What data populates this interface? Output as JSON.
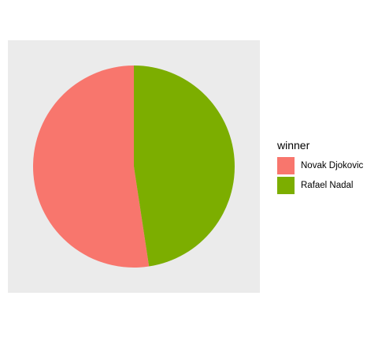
{
  "chart_data": {
    "type": "pie",
    "legend_title": "winner",
    "legend_position": "right",
    "categories": [
      "Novak Djokovic",
      "Rafael Nadal"
    ],
    "values": [
      52.4,
      47.6
    ],
    "colors": [
      "#f8766d",
      "#7cae00"
    ],
    "background": "#ebebeb"
  }
}
